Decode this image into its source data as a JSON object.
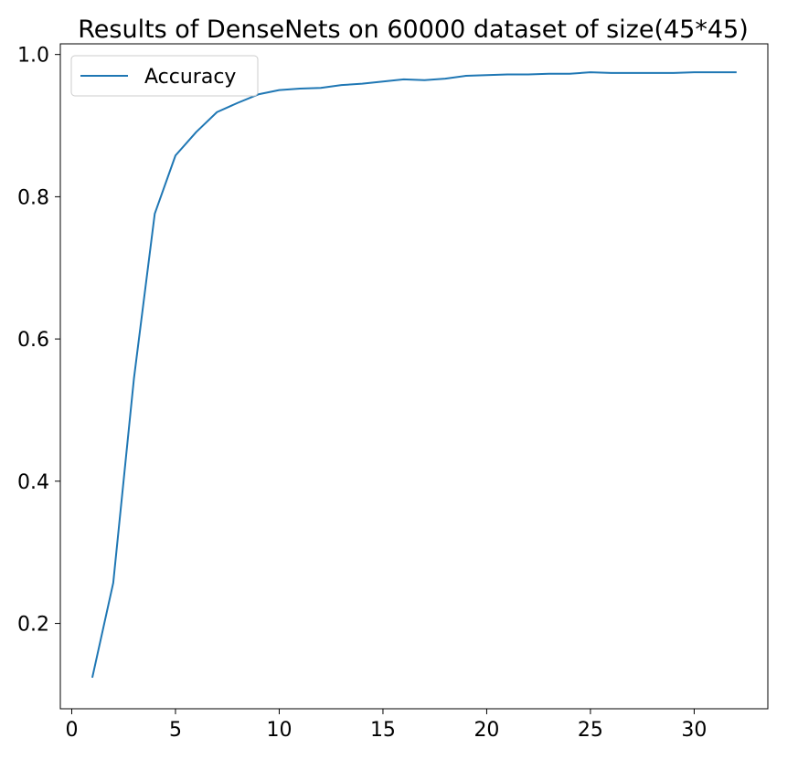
{
  "chart_data": {
    "type": "line",
    "title": "Results of DenseNets on 60000 dataset of size(45*45)",
    "xlabel": "",
    "ylabel": "",
    "xlim": [
      -0.55,
      33.55
    ],
    "ylim": [
      0.08,
      1.015
    ],
    "xticks": [
      0,
      5,
      10,
      15,
      20,
      25,
      30
    ],
    "yticks": [
      0.2,
      0.4,
      0.6,
      0.8,
      1.0
    ],
    "ytick_labels": [
      "0.2",
      "0.4",
      "0.6",
      "0.8",
      "1.0"
    ],
    "grid": false,
    "legend_position": "upper-left",
    "series": [
      {
        "name": "Accuracy",
        "color": "#1f77b4",
        "x": [
          1,
          2,
          3,
          4,
          5,
          6,
          7,
          8,
          9,
          10,
          11,
          12,
          13,
          14,
          15,
          16,
          17,
          18,
          19,
          20,
          21,
          22,
          23,
          24,
          25,
          26,
          27,
          28,
          29,
          30,
          31,
          32
        ],
        "y": [
          0.125,
          0.257,
          0.545,
          0.776,
          0.858,
          0.891,
          0.919,
          0.932,
          0.944,
          0.95,
          0.952,
          0.953,
          0.957,
          0.959,
          0.962,
          0.965,
          0.964,
          0.966,
          0.97,
          0.971,
          0.972,
          0.972,
          0.973,
          0.973,
          0.975,
          0.974,
          0.974,
          0.974,
          0.974,
          0.975,
          0.975,
          0.975
        ]
      }
    ]
  }
}
